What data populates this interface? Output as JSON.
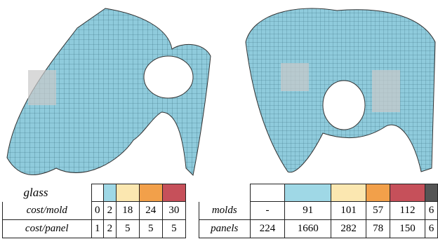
{
  "left_table": {
    "title": "glass",
    "colors": [
      "#ffffff",
      "#9fd8e6",
      "#fbe7b0",
      "#f2a04a",
      "#c6505a"
    ],
    "rows": [
      [
        "cost/mold",
        "0",
        "2",
        "18",
        "24",
        "30"
      ],
      [
        "cost/panel",
        "1",
        "2",
        "5",
        "5",
        "5"
      ]
    ]
  },
  "right_table": {
    "colors": [
      "#ffffff",
      "#9fd8e6",
      "#fbe7b0",
      "#f2a04a",
      "#c6505a",
      "#555555"
    ],
    "rows": [
      [
        "molds",
        "-",
        "91",
        "101",
        "57",
        "112",
        "6"
      ],
      [
        "panels",
        "224",
        "1660",
        "282",
        "78",
        "150",
        "6"
      ]
    ]
  }
}
